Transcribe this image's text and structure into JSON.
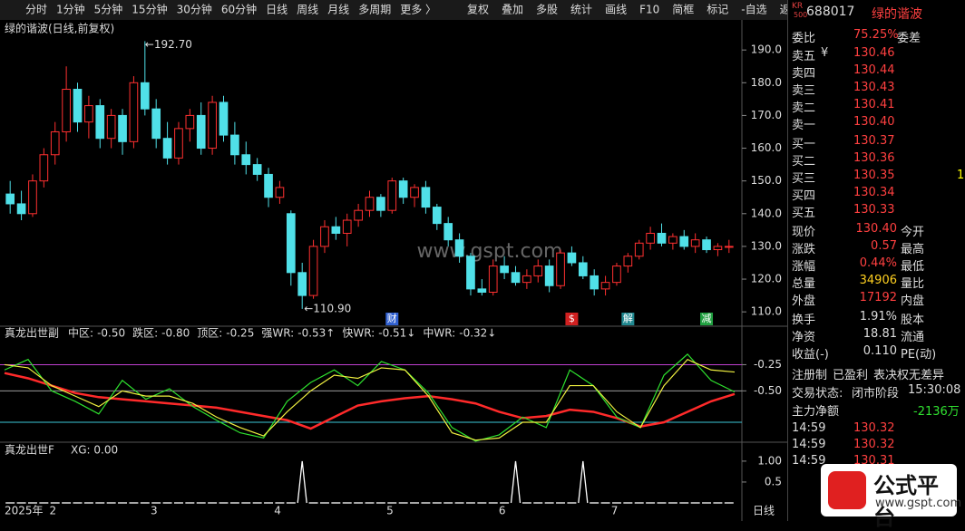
{
  "toolbar": {
    "periods": [
      "分时",
      "1分钟",
      "5分钟",
      "15分钟",
      "30分钟",
      "60分钟",
      "日线",
      "周线",
      "月线",
      "多周期",
      "更多 〉"
    ],
    "tools": [
      "复权",
      "叠加",
      "多股",
      "统计",
      "画线",
      "F10",
      "简框",
      "标记",
      "-自选",
      "返回"
    ]
  },
  "chart_data": [
    {
      "type": "candlestick",
      "title": "绿的谐波(日线,前复权)",
      "ylim": [
        107,
        194.2
      ],
      "yticks": [
        {
          "value": 110,
          "label": "110.0"
        },
        {
          "value": 120,
          "label": "120.0"
        },
        {
          "value": 130,
          "label": "130.0"
        },
        {
          "value": 140,
          "label": "140.0"
        },
        {
          "value": 150,
          "label": "150.0"
        },
        {
          "value": 160,
          "label": "160.0"
        },
        {
          "value": 170,
          "label": "170.0"
        },
        {
          "value": 180,
          "label": "180.0"
        },
        {
          "value": 190,
          "label": "190.0"
        }
      ],
      "categories": [
        "2025年",
        null,
        null,
        null,
        "2",
        null,
        null,
        null,
        null,
        null,
        null,
        null,
        null,
        "3",
        null,
        null,
        null,
        null,
        null,
        null,
        null,
        null,
        null,
        null,
        "4",
        null,
        null,
        null,
        null,
        null,
        null,
        null,
        null,
        null,
        "5",
        null,
        null,
        null,
        null,
        null,
        null,
        null,
        null,
        null,
        "6",
        null,
        null,
        null,
        null,
        null,
        null,
        null,
        null,
        null,
        "7",
        null,
        null,
        null,
        null,
        null,
        null,
        null,
        null,
        null,
        null
      ],
      "events": [
        null,
        null,
        null,
        null,
        null,
        null,
        null,
        null,
        null,
        null,
        null,
        null,
        null,
        null,
        null,
        null,
        null,
        null,
        null,
        null,
        null,
        null,
        null,
        null,
        null,
        null,
        null,
        null,
        null,
        null,
        null,
        null,
        null,
        null,
        "财",
        null,
        null,
        null,
        null,
        null,
        null,
        null,
        null,
        null,
        null,
        null,
        null,
        null,
        null,
        null,
        "$",
        null,
        null,
        null,
        null,
        "解",
        null,
        null,
        null,
        null,
        null,
        null,
        "减",
        null,
        null
      ],
      "open": [
        146,
        143,
        140,
        150,
        158,
        165,
        178,
        168,
        173,
        163,
        170,
        162,
        180,
        172,
        163,
        157,
        166,
        170,
        160,
        174,
        164,
        158,
        155,
        152,
        145,
        140,
        122,
        115,
        130,
        136,
        134,
        138,
        141,
        145,
        141,
        150,
        145,
        148,
        142,
        137,
        132,
        127,
        117,
        116,
        124,
        122,
        119,
        121,
        124,
        118,
        128,
        125,
        121,
        117,
        119,
        124,
        127,
        131,
        134,
        131,
        133,
        130,
        132,
        129,
        130
      ],
      "high": [
        150,
        147,
        152,
        160,
        168,
        185,
        180,
        176,
        175,
        172,
        172,
        182,
        192.7,
        175,
        168,
        168,
        172,
        174,
        176,
        176,
        168,
        162,
        157,
        154,
        150,
        141,
        125,
        132,
        138,
        139,
        140,
        143,
        147,
        146,
        151,
        151,
        149,
        150,
        143,
        139,
        134,
        128,
        120,
        126,
        127,
        124,
        123,
        126,
        126,
        129,
        130,
        127,
        123,
        121,
        125,
        128,
        132,
        136,
        137,
        134,
        135,
        134,
        133,
        131,
        132
      ],
      "low": [
        140,
        138,
        139,
        148,
        155,
        162,
        165,
        163,
        160,
        160,
        158,
        160,
        170,
        160,
        155,
        155,
        162,
        158,
        158,
        162,
        155,
        152,
        150,
        142,
        143,
        118,
        110.9,
        114,
        128,
        132,
        130,
        136,
        139,
        139,
        140,
        143,
        142,
        140,
        135,
        130,
        125,
        115,
        115,
        115,
        120,
        118,
        117,
        119,
        116,
        117,
        124,
        120,
        115,
        115,
        118,
        122,
        126,
        129,
        130,
        129,
        129,
        128,
        128,
        127,
        128
      ],
      "close": [
        143,
        140,
        150,
        158,
        165,
        178,
        168,
        173,
        163,
        170,
        162,
        180,
        172,
        163,
        157,
        166,
        170,
        160,
        174,
        164,
        158,
        155,
        152,
        145,
        148,
        122,
        115,
        130,
        136,
        134,
        138,
        141,
        145,
        141,
        150,
        145,
        148,
        142,
        137,
        132,
        127,
        117,
        116,
        124,
        122,
        119,
        121,
        124,
        118,
        128,
        125,
        121,
        117,
        119,
        124,
        127,
        131,
        134,
        131,
        133,
        130,
        132,
        129,
        130,
        130
      ],
      "high_mark": {
        "value": 192.7,
        "label": "←192.70"
      },
      "low_mark": {
        "value": 110.9,
        "label": "←110.90"
      },
      "watermark": "www.gspt.com"
    },
    {
      "type": "line",
      "title": "真龙出世副",
      "ylim": [
        -0.99,
        0.1
      ],
      "yticks": [
        {
          "value": -0.25,
          "label": "-0.25"
        },
        {
          "value": -0.5,
          "label": "-0.50"
        }
      ],
      "levels": [
        {
          "name": "中区:",
          "value": -0.5,
          "label": "-0.50",
          "color": "#9a9a9a"
        },
        {
          "name": "跌区:",
          "value": -0.8,
          "label": "-0.80",
          "color": "#3cc8d8"
        },
        {
          "name": "顶区:",
          "value": -0.25,
          "label": "-0.25",
          "color": "#c040d0"
        }
      ],
      "series": [
        {
          "name": "强WR:",
          "last_label": "-0.53↑",
          "color": "#ff2a2a",
          "values": [
            -0.33,
            -0.38,
            -0.45,
            -0.52,
            -0.56,
            -0.58,
            -0.6,
            -0.62,
            -0.64,
            -0.66,
            -0.7,
            -0.74,
            -0.78,
            -0.86,
            -0.75,
            -0.64,
            -0.6,
            -0.57,
            -0.55,
            -0.58,
            -0.62,
            -0.7,
            -0.76,
            -0.74,
            -0.68,
            -0.7,
            -0.76,
            -0.84,
            -0.8,
            -0.7,
            -0.6,
            -0.53
          ]
        },
        {
          "name": "快WR:",
          "last_label": "-0.51↓",
          "color": "#2ee02e",
          "values": [
            -0.3,
            -0.2,
            -0.5,
            -0.6,
            -0.72,
            -0.4,
            -0.58,
            -0.48,
            -0.65,
            -0.78,
            -0.9,
            -0.95,
            -0.6,
            -0.42,
            -0.3,
            -0.45,
            -0.22,
            -0.3,
            -0.52,
            -0.85,
            -0.98,
            -0.92,
            -0.75,
            -0.85,
            -0.3,
            -0.45,
            -0.75,
            -0.85,
            -0.35,
            -0.15,
            -0.4,
            -0.51
          ]
        },
        {
          "name": "中WR:",
          "last_label": "-0.32↓",
          "color": "#f0f040",
          "values": [
            -0.25,
            -0.28,
            -0.45,
            -0.55,
            -0.65,
            -0.5,
            -0.55,
            -0.55,
            -0.62,
            -0.75,
            -0.85,
            -0.93,
            -0.7,
            -0.5,
            -0.35,
            -0.38,
            -0.28,
            -0.3,
            -0.55,
            -0.9,
            -0.97,
            -0.95,
            -0.8,
            -0.8,
            -0.45,
            -0.45,
            -0.7,
            -0.85,
            -0.45,
            -0.2,
            -0.3,
            -0.32
          ]
        }
      ]
    },
    {
      "type": "spike",
      "title": "真龙出世F",
      "value_label": "XG: 0.00",
      "ylim": [
        0,
        1.41
      ],
      "yticks": [
        {
          "value": 1,
          "label": "1.00"
        },
        0.5
      ],
      "period": "日线",
      "values": [
        0,
        0,
        0,
        0,
        0,
        0,
        0,
        0,
        0,
        0,
        0,
        0,
        0,
        0,
        0,
        0,
        0,
        0,
        0,
        0,
        0,
        0,
        0,
        0,
        0,
        0,
        1,
        0,
        0,
        0,
        0,
        0,
        0,
        0,
        0,
        0,
        0,
        0,
        0,
        0,
        0,
        0,
        0,
        0,
        0,
        1,
        0,
        0,
        0,
        0,
        0,
        1,
        0,
        0,
        0,
        0,
        0,
        0,
        0,
        0,
        0,
        0,
        0,
        0,
        0
      ]
    }
  ],
  "quote": {
    "badge": [
      "KR",
      "500"
    ],
    "code": "688017",
    "name": "绿的谐波",
    "ratio": [
      "委比",
      "75.25%",
      "委差"
    ],
    "currency": "¥",
    "asks": [
      [
        "卖五",
        "130.46"
      ],
      [
        "卖四",
        "130.44"
      ],
      [
        "卖三",
        "130.43"
      ],
      [
        "卖二",
        "130.41"
      ],
      [
        "卖一",
        "130.40"
      ]
    ],
    "bids": [
      [
        "买一",
        "130.37"
      ],
      [
        "买二",
        "130.36"
      ],
      [
        "买三",
        "130.35"
      ],
      [
        "买四",
        "130.34"
      ],
      [
        "买五",
        "130.33"
      ]
    ],
    "clipped_volume": "1",
    "stats": [
      [
        "现价",
        "130.40",
        "今开"
      ],
      [
        "涨跌",
        "0.57",
        "最高"
      ],
      [
        "涨幅",
        "0.44%",
        "最低"
      ],
      [
        "总量",
        "34906",
        "量比"
      ],
      [
        "外盘",
        "17192",
        "内盘"
      ]
    ],
    "stats2": [
      [
        "换手",
        "1.91%",
        "股本"
      ],
      [
        "净资",
        "18.81",
        "流通"
      ],
      [
        "收益(-)",
        "0.110",
        "PE(动)"
      ]
    ],
    "tags": [
      "注册制",
      "已盈利",
      "表决权无差异"
    ],
    "status": [
      "交易状态:",
      "闭市阶段",
      "15:30:08"
    ],
    "main_flow": [
      "主力净额",
      "-2136万"
    ],
    "ticks": [
      [
        "14:59",
        "130.32"
      ],
      [
        "14:59",
        "130.32"
      ],
      [
        "14:59",
        "130.31"
      ]
    ]
  },
  "logo": {
    "text": "公式平台",
    "url": "www.gspt.com"
  }
}
